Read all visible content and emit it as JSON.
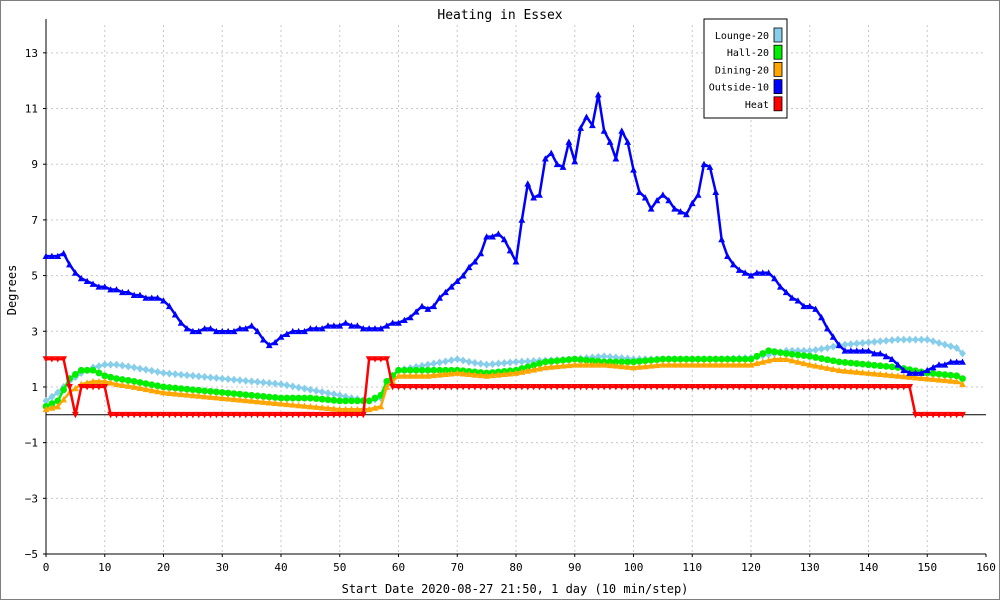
{
  "chart_data": {
    "type": "line",
    "title": "Heating in Essex",
    "xlabel": "Start Date 2020-08-27 21:50, 1 day (10 min/step)",
    "ylabel": "Degrees",
    "xlim": [
      0,
      160
    ],
    "ylim": [
      -5,
      14
    ],
    "xticks": [
      0,
      10,
      20,
      30,
      40,
      50,
      60,
      70,
      80,
      90,
      100,
      110,
      120,
      130,
      140,
      150,
      160
    ],
    "yticks": [
      -5,
      -3,
      -1,
      1,
      3,
      5,
      7,
      9,
      11,
      13
    ],
    "grid": true,
    "legend_position": "top-right",
    "series": [
      {
        "name": "Lounge-20",
        "color": "#87ceeb",
        "marker": "diamond",
        "x": [
          0,
          2,
          4,
          6,
          8,
          10,
          12,
          15,
          20,
          25,
          30,
          35,
          40,
          45,
          50,
          52,
          55,
          57,
          58,
          60,
          65,
          70,
          72,
          75,
          80,
          85,
          90,
          95,
          100,
          105,
          110,
          115,
          120,
          124,
          126,
          130,
          133,
          135,
          140,
          145,
          150,
          155,
          156
        ],
        "values": [
          0.5,
          0.8,
          1.2,
          1.5,
          1.7,
          1.8,
          1.8,
          1.7,
          1.5,
          1.4,
          1.3,
          1.2,
          1.1,
          0.9,
          0.7,
          0.6,
          0.5,
          0.6,
          1.2,
          1.6,
          1.8,
          2.0,
          1.9,
          1.8,
          1.9,
          1.95,
          2.0,
          2.1,
          2.0,
          2.0,
          2.0,
          2.0,
          2.05,
          2.2,
          2.3,
          2.3,
          2.4,
          2.5,
          2.6,
          2.7,
          2.7,
          2.4,
          2.2
        ]
      },
      {
        "name": "Hall-20",
        "color": "#00ee00",
        "marker": "circle",
        "x": [
          0,
          2,
          4,
          6,
          8,
          10,
          12,
          15,
          20,
          25,
          30,
          35,
          40,
          45,
          50,
          53,
          55,
          57,
          58,
          60,
          65,
          70,
          75,
          80,
          85,
          90,
          95,
          100,
          105,
          110,
          115,
          120,
          123,
          126,
          130,
          135,
          140,
          145,
          150,
          155,
          156
        ],
        "values": [
          0.3,
          0.5,
          1.3,
          1.6,
          1.6,
          1.4,
          1.3,
          1.2,
          1.0,
          0.9,
          0.8,
          0.7,
          0.6,
          0.6,
          0.5,
          0.5,
          0.5,
          0.7,
          1.2,
          1.6,
          1.6,
          1.6,
          1.5,
          1.6,
          1.9,
          2.0,
          1.9,
          1.9,
          2.0,
          2.0,
          2.0,
          2.0,
          2.3,
          2.2,
          2.1,
          1.9,
          1.8,
          1.7,
          1.5,
          1.4,
          1.3
        ]
      },
      {
        "name": "Dining-20",
        "color": "#ffa500",
        "marker": "triangle",
        "x": [
          0,
          2,
          4,
          6,
          8,
          10,
          12,
          15,
          20,
          25,
          30,
          35,
          40,
          45,
          50,
          55,
          57,
          58,
          60,
          65,
          70,
          75,
          80,
          85,
          90,
          95,
          100,
          105,
          110,
          115,
          120,
          124,
          126,
          130,
          135,
          140,
          145,
          150,
          155,
          156
        ],
        "values": [
          0.2,
          0.3,
          0.8,
          1.1,
          1.2,
          1.2,
          1.1,
          1.0,
          0.8,
          0.7,
          0.6,
          0.5,
          0.4,
          0.3,
          0.2,
          0.2,
          0.3,
          1.0,
          1.4,
          1.4,
          1.5,
          1.4,
          1.5,
          1.7,
          1.8,
          1.8,
          1.7,
          1.8,
          1.8,
          1.8,
          1.8,
          2.0,
          2.0,
          1.8,
          1.6,
          1.5,
          1.4,
          1.3,
          1.2,
          1.1
        ]
      },
      {
        "name": "Outside-10",
        "color": "#0000ff",
        "marker": "triangle",
        "x": [
          0,
          1,
          2,
          3,
          4,
          5,
          6,
          7,
          8,
          9,
          10,
          11,
          12,
          13,
          14,
          15,
          16,
          17,
          18,
          19,
          20,
          21,
          22,
          23,
          24,
          25,
          26,
          27,
          28,
          29,
          30,
          31,
          32,
          33,
          34,
          35,
          36,
          37,
          38,
          39,
          40,
          41,
          42,
          43,
          44,
          45,
          46,
          47,
          48,
          49,
          50,
          51,
          52,
          53,
          54,
          55,
          56,
          57,
          58,
          59,
          60,
          61,
          62,
          63,
          64,
          65,
          66,
          67,
          68,
          69,
          70,
          71,
          72,
          73,
          74,
          75,
          76,
          77,
          78,
          79,
          80,
          81,
          82,
          83,
          84,
          85,
          86,
          87,
          88,
          89,
          90,
          91,
          92,
          93,
          94,
          95,
          96,
          97,
          98,
          99,
          100,
          101,
          102,
          103,
          104,
          105,
          106,
          107,
          108,
          109,
          110,
          111,
          112,
          113,
          114,
          115,
          116,
          117,
          118,
          119,
          120,
          121,
          122,
          123,
          124,
          125,
          126,
          127,
          128,
          129,
          130,
          131,
          132,
          133,
          134,
          135,
          136,
          137,
          138,
          139,
          140,
          141,
          142,
          143,
          144,
          145,
          146,
          147,
          148,
          149,
          150,
          151,
          152,
          153,
          154,
          155,
          156
        ],
        "values": [
          5.7,
          5.7,
          5.7,
          5.8,
          5.4,
          5.1,
          4.9,
          4.8,
          4.7,
          4.6,
          4.6,
          4.5,
          4.5,
          4.4,
          4.4,
          4.3,
          4.3,
          4.2,
          4.2,
          4.2,
          4.1,
          3.9,
          3.6,
          3.3,
          3.1,
          3.0,
          3.0,
          3.1,
          3.1,
          3.0,
          3.0,
          3.0,
          3.0,
          3.1,
          3.1,
          3.2,
          3.0,
          2.7,
          2.5,
          2.6,
          2.8,
          2.9,
          3.0,
          3.0,
          3.0,
          3.1,
          3.1,
          3.1,
          3.2,
          3.2,
          3.2,
          3.3,
          3.2,
          3.2,
          3.1,
          3.1,
          3.1,
          3.1,
          3.2,
          3.3,
          3.3,
          3.4,
          3.5,
          3.7,
          3.9,
          3.8,
          3.9,
          4.2,
          4.4,
          4.6,
          4.8,
          5.0,
          5.3,
          5.5,
          5.8,
          6.4,
          6.4,
          6.5,
          6.3,
          5.9,
          5.5,
          7.0,
          8.3,
          7.8,
          7.9,
          9.2,
          9.4,
          9.0,
          8.9,
          9.8,
          9.1,
          10.3,
          10.7,
          10.4,
          11.5,
          10.2,
          9.8,
          9.2,
          10.2,
          9.8,
          8.8,
          8.0,
          7.8,
          7.4,
          7.7,
          7.9,
          7.7,
          7.4,
          7.3,
          7.2,
          7.6,
          7.9,
          9.0,
          8.9,
          8.0,
          6.3,
          5.7,
          5.4,
          5.2,
          5.1,
          5.0,
          5.1,
          5.1,
          5.1,
          4.9,
          4.6,
          4.4,
          4.2,
          4.1,
          3.9,
          3.9,
          3.8,
          3.5,
          3.1,
          2.8,
          2.5,
          2.3,
          2.3,
          2.3,
          2.3,
          2.3,
          2.2,
          2.2,
          2.1,
          2.0,
          1.8,
          1.6,
          1.5,
          1.5,
          1.5,
          1.6,
          1.7,
          1.8,
          1.8,
          1.9,
          1.9,
          1.9
        ]
      },
      {
        "name": "Heat",
        "color": "#ff0000",
        "marker": "triangle-down",
        "x": [
          0,
          3,
          5,
          6,
          10,
          11,
          54,
          55,
          58,
          59,
          147,
          148,
          156
        ],
        "values": [
          2,
          2,
          0,
          1,
          1,
          0,
          0,
          2,
          2,
          1,
          1,
          0,
          0
        ]
      }
    ]
  }
}
